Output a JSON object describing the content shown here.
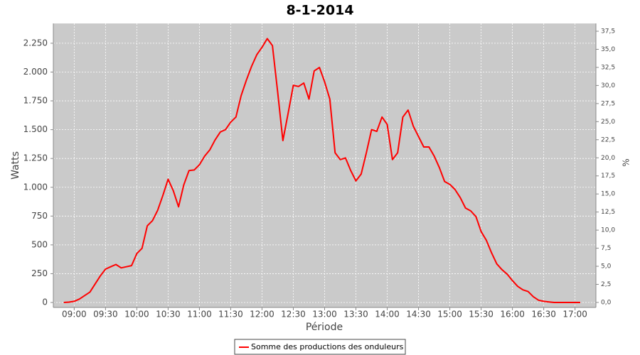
{
  "chart_data": {
    "type": "line",
    "title": "8-1-2014",
    "x_label": "Période",
    "y_label": "Watts",
    "y2_label": "%",
    "x": [
      "08:50",
      "08:55",
      "09:00",
      "09:05",
      "09:10",
      "09:15",
      "09:20",
      "09:25",
      "09:30",
      "09:35",
      "09:40",
      "09:45",
      "09:50",
      "09:55",
      "10:00",
      "10:05",
      "10:10",
      "10:15",
      "10:20",
      "10:25",
      "10:30",
      "10:35",
      "10:40",
      "10:45",
      "10:50",
      "10:55",
      "11:00",
      "11:05",
      "11:10",
      "11:15",
      "11:20",
      "11:25",
      "11:30",
      "11:35",
      "11:40",
      "11:45",
      "11:50",
      "11:55",
      "12:00",
      "12:05",
      "12:10",
      "12:15",
      "12:20",
      "12:25",
      "12:30",
      "12:35",
      "12:40",
      "12:45",
      "12:50",
      "12:55",
      "13:00",
      "13:05",
      "13:10",
      "13:15",
      "13:20",
      "13:25",
      "13:30",
      "13:35",
      "13:40",
      "13:45",
      "13:50",
      "13:55",
      "14:00",
      "14:05",
      "14:10",
      "14:15",
      "14:20",
      "14:25",
      "14:30",
      "14:35",
      "14:40",
      "14:45",
      "14:50",
      "14:55",
      "15:00",
      "15:05",
      "15:10",
      "15:15",
      "15:20",
      "15:25",
      "15:30",
      "15:35",
      "15:40",
      "15:45",
      "15:50",
      "15:55",
      "16:00",
      "16:05",
      "16:10",
      "16:15",
      "16:20",
      "16:25",
      "16:30",
      "16:35",
      "16:40",
      "16:45",
      "16:50",
      "16:55",
      "17:00",
      "17:05"
    ],
    "series": [
      {
        "name": "Somme des productions des onduleurs",
        "color": "#ff0000",
        "values": [
          0,
          3,
          10,
          30,
          60,
          90,
          160,
          230,
          290,
          310,
          330,
          300,
          310,
          320,
          425,
          470,
          665,
          710,
          800,
          930,
          1070,
          970,
          830,
          1020,
          1145,
          1150,
          1195,
          1270,
          1325,
          1410,
          1480,
          1500,
          1565,
          1610,
          1795,
          1930,
          2050,
          2150,
          2215,
          2290,
          2230,
          1825,
          1405,
          1640,
          1885,
          1875,
          1905,
          1765,
          2010,
          2040,
          1915,
          1765,
          1300,
          1240,
          1255,
          1145,
          1055,
          1115,
          1300,
          1500,
          1485,
          1610,
          1545,
          1240,
          1300,
          1610,
          1670,
          1530,
          1440,
          1350,
          1350,
          1270,
          1170,
          1050,
          1025,
          980,
          910,
          820,
          795,
          745,
          615,
          540,
          430,
          335,
          285,
          245,
          190,
          140,
          110,
          95,
          50,
          20,
          10,
          5,
          0,
          0,
          0,
          0,
          0,
          0
        ]
      }
    ],
    "xlim": [
      "08:40",
      "17:20"
    ],
    "xticks": [
      "09:00",
      "09:30",
      "10:00",
      "10:30",
      "11:00",
      "11:30",
      "12:00",
      "12:30",
      "13:00",
      "13:30",
      "14:00",
      "14:30",
      "15:00",
      "15:30",
      "16:00",
      "16:30",
      "17:00"
    ],
    "ylim": [
      -43,
      2422
    ],
    "yticks": [
      0,
      250,
      500,
      750,
      {
        "value": 1000,
        "label": "1.000"
      },
      {
        "value": 1250,
        "label": "1.250"
      },
      {
        "value": 1500,
        "label": "1.500"
      },
      {
        "value": 1750,
        "label": "1.750"
      },
      {
        "value": 2000,
        "label": "2.000"
      },
      {
        "value": 2250,
        "label": "2.250"
      }
    ],
    "y2lim": [
      -0.69,
      38.58
    ],
    "y2ticks": [
      {
        "value": 0,
        "label": "0,0"
      },
      {
        "value": 2.5,
        "label": "2,5"
      },
      {
        "value": 5,
        "label": "5,0"
      },
      {
        "value": 7.5,
        "label": "7,5"
      },
      {
        "value": 10,
        "label": "10,0"
      },
      {
        "value": 12.5,
        "label": "12,5"
      },
      {
        "value": 15,
        "label": "15,0"
      },
      {
        "value": 17.5,
        "label": "17,5"
      },
      {
        "value": 20,
        "label": "20,0"
      },
      {
        "value": 22.5,
        "label": "22,5"
      },
      {
        "value": 25,
        "label": "25,0"
      },
      {
        "value": 27.5,
        "label": "27,5"
      },
      {
        "value": 30,
        "label": "30,0"
      },
      {
        "value": 32.5,
        "label": "32,5"
      },
      {
        "value": 35,
        "label": "35,0"
      },
      {
        "value": 37.5,
        "label": "37,5"
      }
    ],
    "grid": true,
    "legend": "bottom",
    "plot_background": "#cacaca"
  }
}
